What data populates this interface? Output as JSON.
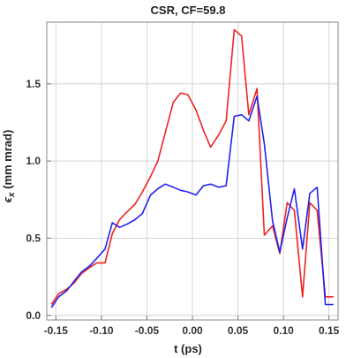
{
  "chart_data": {
    "type": "line",
    "title": "CSR, CF=59.8",
    "xlabel": "t (ps)",
    "ylabel_main": "ϵ",
    "ylabel_sub": "x",
    "ylabel_rest": " (mm mrad)",
    "xlim": [
      -0.16,
      0.16
    ],
    "ylim": [
      -0.03,
      1.9
    ],
    "xticks": [
      -0.15,
      -0.1,
      -0.05,
      0.0,
      0.05,
      0.1,
      0.15
    ],
    "xtick_labels": [
      "-0.15",
      "-0.10",
      "-0.05",
      "0.00",
      "0.05",
      "0.10",
      "0.15"
    ],
    "yticks": [
      0.0,
      0.5,
      1.0,
      1.5
    ],
    "ytick_labels": [
      "0.0",
      "0.5",
      "1.0",
      "1.5"
    ],
    "grid": true,
    "series": [
      {
        "color": "#ee2222",
        "x": [
          -0.155,
          -0.147,
          -0.138,
          -0.13,
          -0.122,
          -0.113,
          -0.105,
          -0.096,
          -0.088,
          -0.08,
          -0.072,
          -0.063,
          -0.055,
          -0.046,
          -0.038,
          -0.03,
          -0.021,
          -0.013,
          -0.005,
          0.004,
          0.012,
          0.02,
          0.029,
          0.037,
          0.046,
          0.054,
          0.062,
          0.071,
          0.079,
          0.088,
          0.096,
          0.104,
          0.112,
          0.121,
          0.129,
          0.137,
          0.146,
          0.155
        ],
        "y": [
          0.07,
          0.14,
          0.17,
          0.21,
          0.27,
          0.31,
          0.34,
          0.34,
          0.53,
          0.62,
          0.67,
          0.72,
          0.8,
          0.9,
          1.0,
          1.18,
          1.38,
          1.44,
          1.43,
          1.33,
          1.2,
          1.09,
          1.17,
          1.26,
          1.85,
          1.81,
          1.3,
          1.47,
          0.52,
          0.58,
          0.4,
          0.73,
          0.68,
          0.12,
          0.73,
          0.68,
          0.12,
          0.12
        ]
      },
      {
        "color": "#2222ee",
        "x": [
          -0.155,
          -0.147,
          -0.138,
          -0.13,
          -0.122,
          -0.113,
          -0.105,
          -0.096,
          -0.088,
          -0.08,
          -0.072,
          -0.063,
          -0.055,
          -0.046,
          -0.038,
          -0.03,
          -0.021,
          -0.013,
          -0.005,
          0.004,
          0.012,
          0.02,
          0.029,
          0.037,
          0.046,
          0.054,
          0.062,
          0.071,
          0.079,
          0.088,
          0.096,
          0.104,
          0.112,
          0.121,
          0.129,
          0.137,
          0.146,
          0.155
        ],
        "y": [
          0.05,
          0.12,
          0.16,
          0.22,
          0.28,
          0.32,
          0.37,
          0.43,
          0.6,
          0.57,
          0.59,
          0.62,
          0.66,
          0.78,
          0.82,
          0.85,
          0.83,
          0.81,
          0.8,
          0.78,
          0.84,
          0.85,
          0.83,
          0.84,
          1.29,
          1.3,
          1.26,
          1.42,
          1.11,
          0.61,
          0.41,
          0.63,
          0.82,
          0.43,
          0.79,
          0.83,
          0.07,
          0.07
        ]
      }
    ]
  }
}
